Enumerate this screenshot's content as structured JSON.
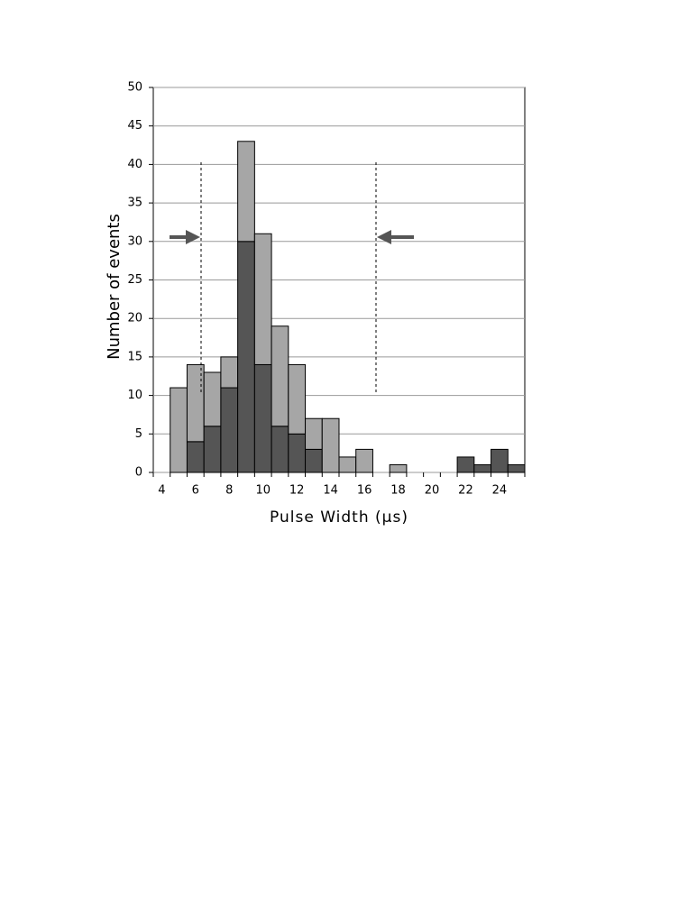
{
  "chart_data": {
    "type": "stacked_bar",
    "x_label": "Pulse Width (μs)",
    "y_label": "Number of events",
    "categories": [
      "4",
      null,
      "6",
      null,
      "8",
      null,
      "10",
      null,
      "12",
      null,
      "14",
      null,
      "16",
      null,
      "18",
      null,
      "20",
      null,
      "22",
      null,
      "24",
      null
    ],
    "series": [
      {
        "color": "#555555",
        "values": [
          0,
          0,
          4,
          6,
          11,
          30,
          14,
          6,
          5,
          3,
          0,
          0,
          0,
          0,
          0,
          0,
          0,
          0,
          2,
          1,
          3,
          1
        ]
      },
      {
        "color": "#a6a6a6",
        "values": [
          0,
          11,
          10,
          7,
          4,
          13,
          17,
          13,
          9,
          4,
          7,
          2,
          3,
          0,
          1,
          0,
          0,
          0,
          0,
          0,
          0,
          0
        ]
      }
    ],
    "ylim": [
      0,
      50
    ],
    "yticks": [
      0,
      5,
      10,
      15,
      20,
      25,
      30,
      35,
      40,
      45,
      50
    ],
    "grid": true
  }
}
